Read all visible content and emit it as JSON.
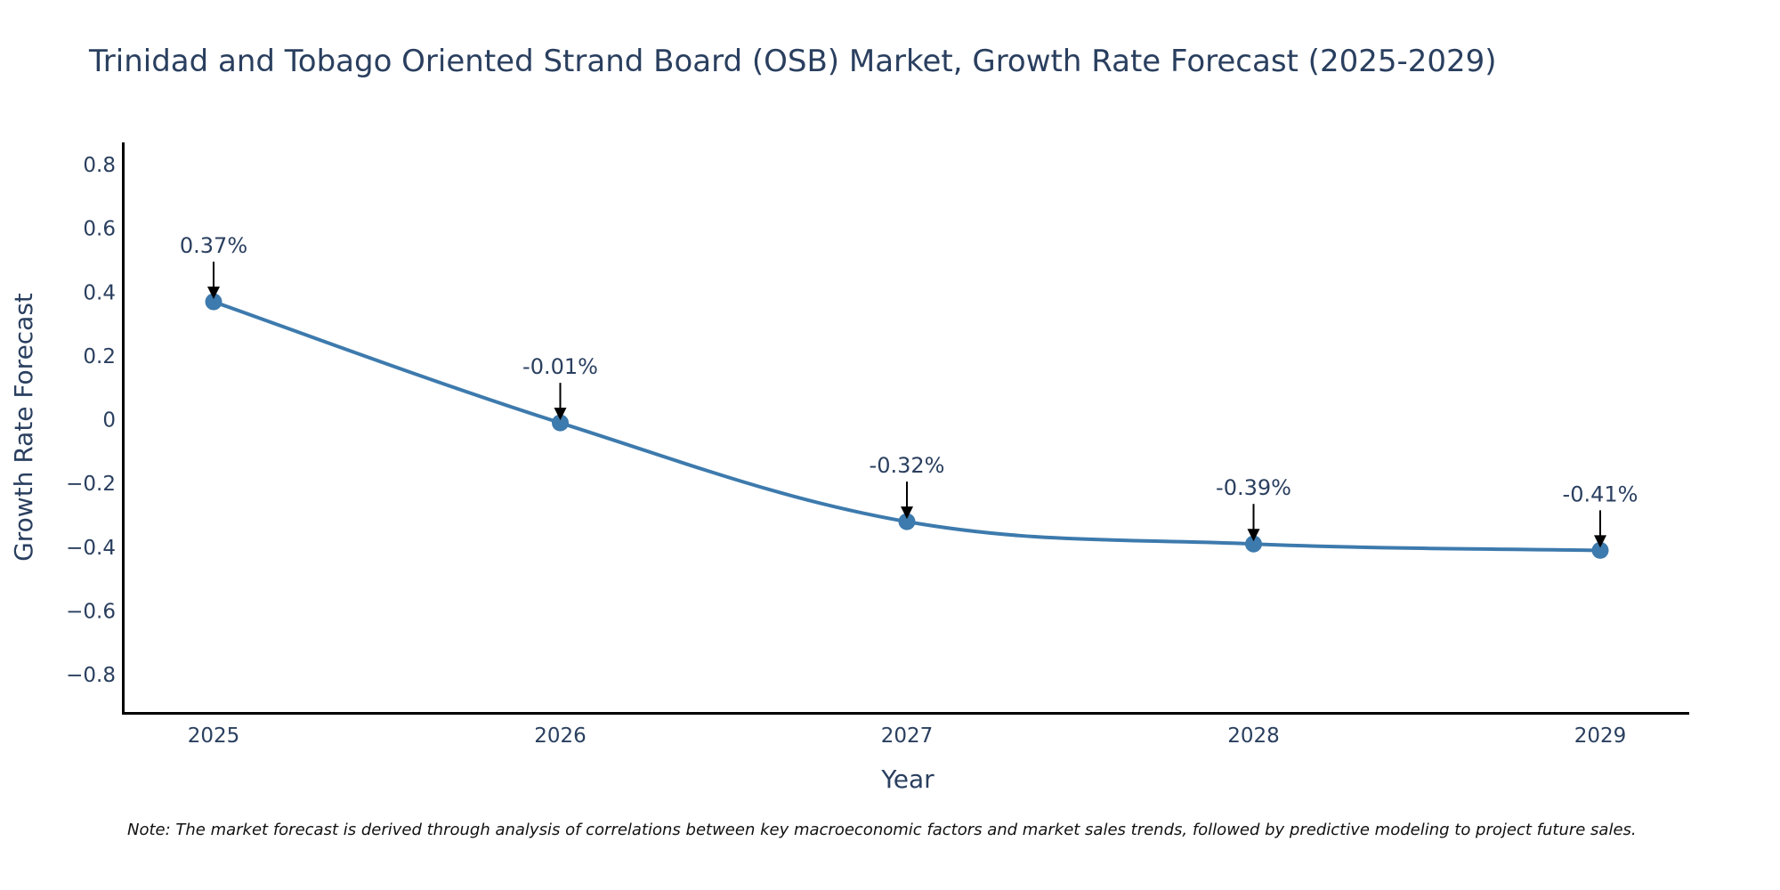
{
  "chart_data": {
    "type": "line",
    "title": "Trinidad and Tobago Oriented Strand Board (OSB) Market, Growth Rate Forecast (2025-2029)",
    "xlabel": "Year",
    "ylabel": "Growth Rate Forecast",
    "categories": [
      "2025",
      "2026",
      "2027",
      "2028",
      "2029"
    ],
    "series": [
      {
        "name": "Growth Rate Forecast",
        "values": [
          0.37,
          -0.01,
          -0.32,
          -0.39,
          -0.41
        ],
        "labels": [
          "0.37%",
          "-0.01%",
          "-0.32%",
          "-0.39%",
          "-0.41%"
        ]
      }
    ],
    "ylim": [
      -0.92,
      0.87
    ],
    "yticks": [
      0.8,
      0.6,
      0.4,
      0.2,
      0,
      -0.2,
      -0.4,
      -0.6,
      -0.8
    ],
    "ytick_labels": [
      "0.8",
      "0.6",
      "0.4",
      "0.2",
      "0",
      "−0.2",
      "−0.4",
      "−0.6",
      "−0.8"
    ],
    "grid": false,
    "line_color": "#3d7aad",
    "note": "Note: The market forecast is derived through analysis of correlations between key macroeconomic factors and market sales trends, followed by predictive modeling to project future sales."
  }
}
